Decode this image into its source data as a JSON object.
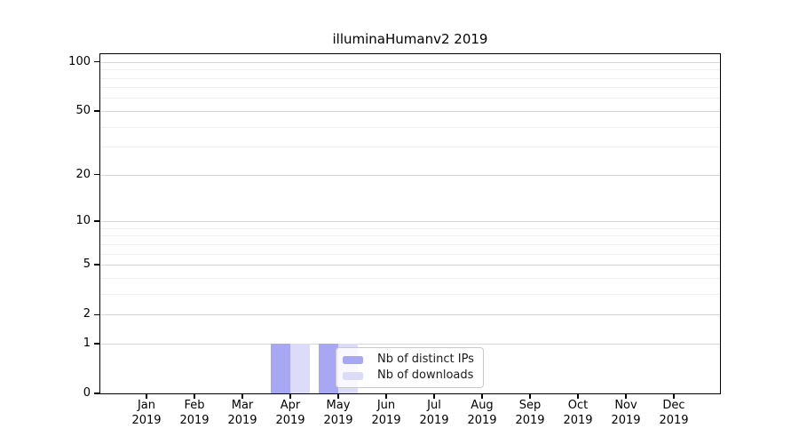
{
  "chart_data": {
    "type": "bar",
    "title": "illuminaHumanv2 2019",
    "year_label": "2019",
    "categories": [
      "Jan",
      "Feb",
      "Mar",
      "Apr",
      "May",
      "Jun",
      "Jul",
      "Aug",
      "Sep",
      "Oct",
      "Nov",
      "Dec"
    ],
    "series": [
      {
        "name": "Nb of distinct IPs",
        "color": "#a7a7f4",
        "values": [
          0,
          0,
          0,
          1,
          1,
          0,
          0,
          0,
          0,
          0,
          0,
          0
        ]
      },
      {
        "name": "Nb of downloads",
        "color": "#dcdcf8",
        "values": [
          0,
          0,
          0,
          1,
          1,
          0,
          0,
          0,
          0,
          0,
          0,
          0
        ]
      }
    ],
    "xlabel": "",
    "ylabel": "",
    "yscale": "log1p",
    "ylim": [
      0,
      112
    ],
    "yticks": [
      0,
      1,
      2,
      5,
      10,
      20,
      50,
      100
    ],
    "yticks_minor": [
      3,
      4,
      6,
      7,
      8,
      9,
      30,
      40,
      60,
      70,
      80,
      90
    ],
    "grid": true,
    "legend_position": "inside-bottom-center",
    "colors": {
      "axis": "#000000",
      "grid_major": "#d6d6d6",
      "grid_minor": "#efefef",
      "background": "#ffffff"
    }
  }
}
